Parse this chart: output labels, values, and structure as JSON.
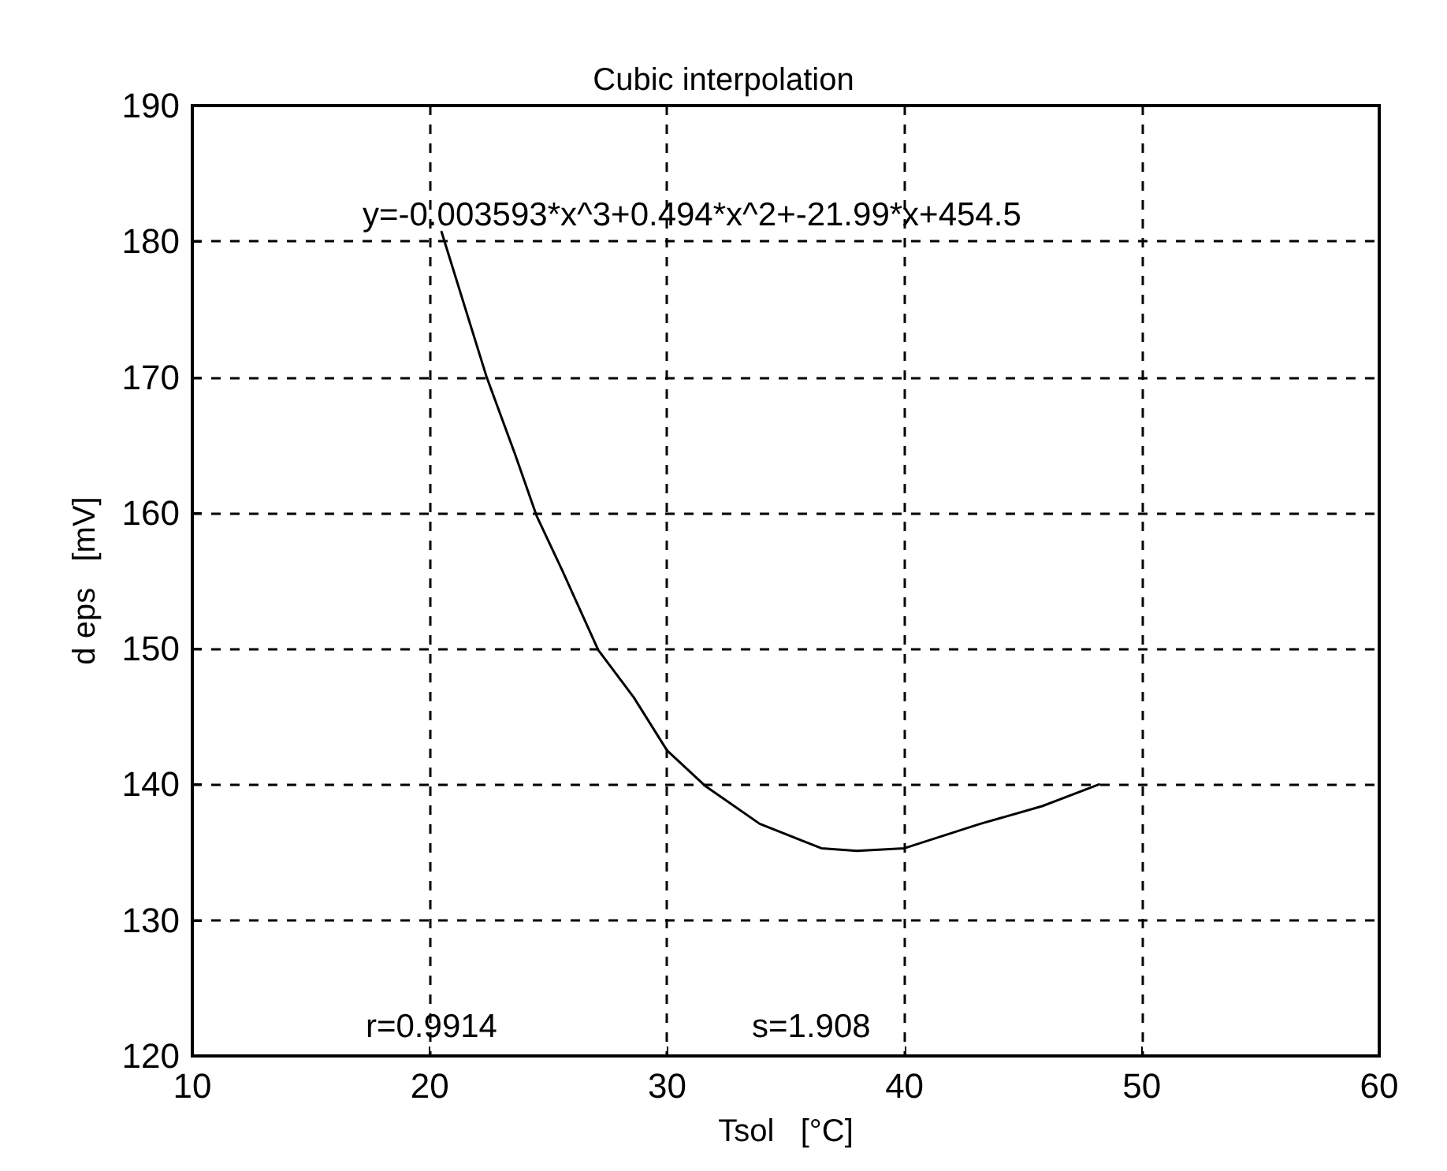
{
  "chart_data": {
    "type": "line",
    "title": "Cubic interpolation",
    "xlabel": "Tsol   [°C]",
    "ylabel": "d eps   [mV]",
    "annotations": [
      "y=-0.003593*x^3+0.494*x^2+-21.99*x+454.5",
      "r=0.9914",
      "s=1.908"
    ],
    "series": [
      {
        "color": "#000000",
        "x": [
          20.5,
          22.4,
          23.6,
          24.5,
          25.6,
          27.1,
          28.6,
          30.0,
          31.6,
          33.9,
          36.5,
          38.0,
          40.0,
          43.2,
          45.8,
          48.2
        ],
        "values": [
          180.7,
          170.0,
          164.3,
          159.8,
          155.7,
          149.9,
          146.4,
          142.5,
          139.9,
          137.1,
          135.3,
          135.1,
          135.3,
          137.1,
          138.4,
          140.0
        ]
      }
    ],
    "xlim": [
      10,
      60
    ],
    "xticks": [
      10,
      20,
      30,
      40,
      50,
      60
    ],
    "ylim": [
      120,
      190
    ],
    "yticks": [
      120,
      130,
      140,
      150,
      160,
      170,
      180,
      190
    ],
    "grid": true,
    "marker": "none",
    "line_style": "solid"
  }
}
